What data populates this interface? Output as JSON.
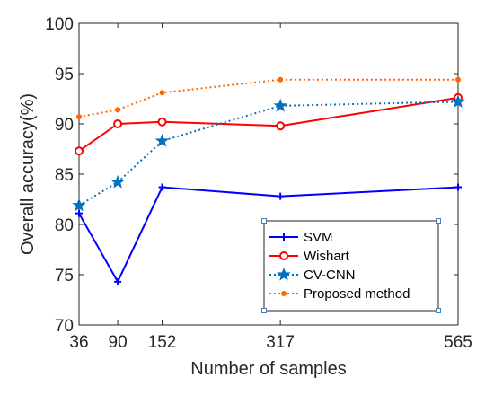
{
  "chart_data": {
    "type": "line",
    "xlabel": "Number of samples",
    "ylabel": "Overall accuracy(%)",
    "x": [
      36,
      90,
      152,
      317,
      565
    ],
    "x_ticks": [
      "36",
      "90",
      "152",
      "317",
      "565"
    ],
    "ylim": [
      70,
      100
    ],
    "y_ticks": [
      "70",
      "75",
      "80",
      "85",
      "90",
      "95",
      "100"
    ],
    "grid": false,
    "legend_position": "bottom-right",
    "series": [
      {
        "name": "SVM",
        "values": [
          81.1,
          74.3,
          83.7,
          82.8,
          83.7
        ],
        "color": "#0000ff",
        "line_style": "solid",
        "marker": "plus"
      },
      {
        "name": "Wishart",
        "values": [
          87.3,
          90.0,
          90.2,
          89.8,
          92.6
        ],
        "color": "#ff0000",
        "line_style": "solid",
        "marker": "circle"
      },
      {
        "name": "CV-CNN",
        "values": [
          81.9,
          84.2,
          88.3,
          91.8,
          92.2
        ],
        "color": "#0072bd",
        "line_style": "dotted",
        "marker": "pentagram"
      },
      {
        "name": "Proposed method",
        "values": [
          90.7,
          91.4,
          93.1,
          94.4,
          94.4
        ],
        "color": "#ff6600",
        "line_style": "dotted",
        "marker": "dot"
      }
    ]
  }
}
